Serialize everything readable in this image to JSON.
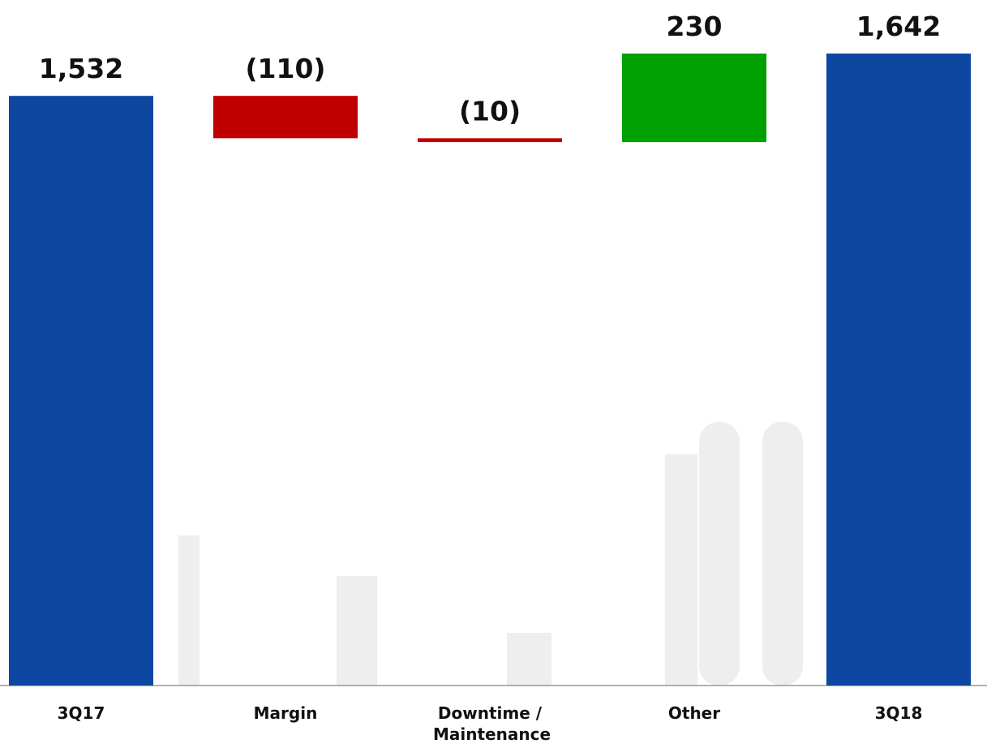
{
  "chart_data": {
    "type": "waterfall",
    "categories": [
      "3Q17",
      "Margin",
      "Downtime / Maintenance",
      "Other",
      "3Q18"
    ],
    "values": [
      1532,
      -110,
      -10,
      230,
      1642
    ],
    "value_labels": [
      "1,532",
      "(110)",
      "(10)",
      "230",
      "1,642"
    ],
    "colors": [
      "#0d47a1",
      "#c00000",
      "#c00000",
      "#00a000",
      "#0d47a1"
    ]
  }
}
